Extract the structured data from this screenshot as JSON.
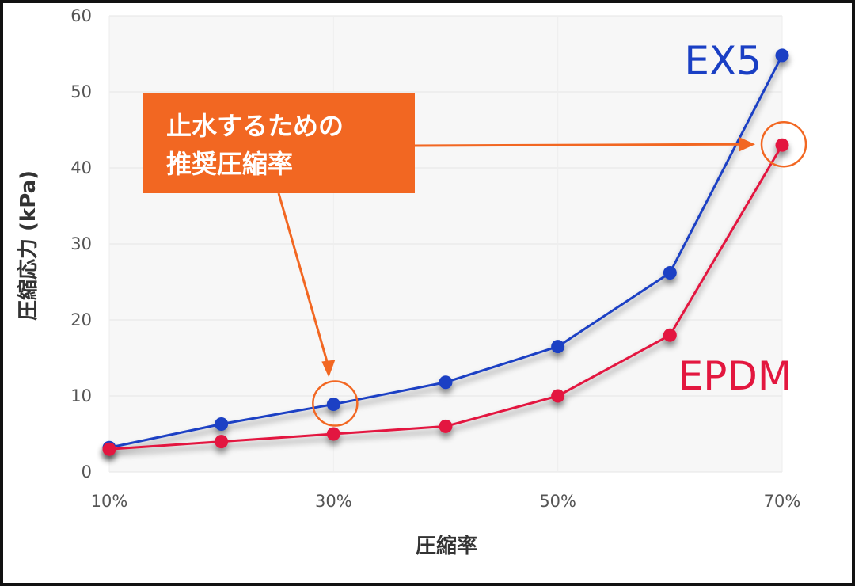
{
  "chart_data": {
    "type": "line",
    "title": "",
    "xlabel": "圧縮率",
    "ylabel": "圧縮応力 (kPa)",
    "x": [
      10,
      20,
      30,
      40,
      50,
      60,
      70
    ],
    "x_unit": "%",
    "xticks": [
      "10%",
      "30%",
      "50%",
      "70%"
    ],
    "xlim": [
      10,
      70
    ],
    "yticks": [
      "0",
      "10",
      "20",
      "30",
      "40",
      "50",
      "60"
    ],
    "ylim": [
      0,
      60
    ],
    "grid": true,
    "series": [
      {
        "name": "EX5",
        "color": "#1a3fc4",
        "values": [
          3.2,
          6.3,
          8.9,
          11.8,
          16.5,
          26.2,
          54.8
        ]
      },
      {
        "name": "EPDM",
        "color": "#e3173f",
        "values": [
          3.0,
          4.0,
          5.0,
          6.0,
          10.0,
          18.0,
          43.0
        ]
      }
    ],
    "annotation": {
      "lines": [
        "止水するための",
        "推奨圧縮率"
      ],
      "color": "#f26722",
      "points": [
        {
          "series": "EX5",
          "x": 30,
          "y": 8.9
        },
        {
          "series": "EPDM",
          "x": 70,
          "y": 43.0
        }
      ]
    }
  }
}
